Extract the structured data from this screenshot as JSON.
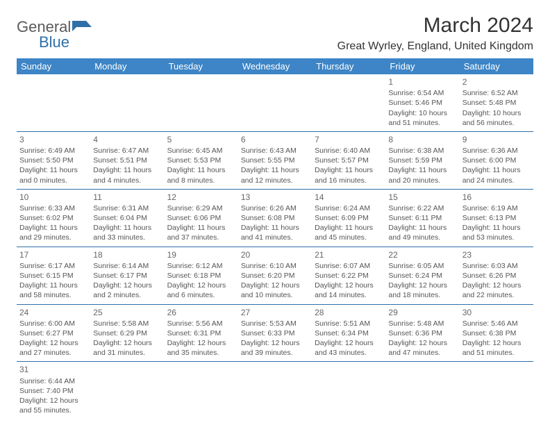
{
  "logo": {
    "general": "General",
    "blue": "Blue"
  },
  "title": "March 2024",
  "location": "Great Wyrley, England, United Kingdom",
  "header_bg": "#3d85c6",
  "days_of_week": [
    "Sunday",
    "Monday",
    "Tuesday",
    "Wednesday",
    "Thursday",
    "Friday",
    "Saturday"
  ],
  "cells": [
    [
      null,
      null,
      null,
      null,
      null,
      {
        "n": "1",
        "sr": "Sunrise: 6:54 AM",
        "ss": "Sunset: 5:46 PM",
        "dl": "Daylight: 10 hours and 51 minutes."
      },
      {
        "n": "2",
        "sr": "Sunrise: 6:52 AM",
        "ss": "Sunset: 5:48 PM",
        "dl": "Daylight: 10 hours and 56 minutes."
      }
    ],
    [
      {
        "n": "3",
        "sr": "Sunrise: 6:49 AM",
        "ss": "Sunset: 5:50 PM",
        "dl": "Daylight: 11 hours and 0 minutes."
      },
      {
        "n": "4",
        "sr": "Sunrise: 6:47 AM",
        "ss": "Sunset: 5:51 PM",
        "dl": "Daylight: 11 hours and 4 minutes."
      },
      {
        "n": "5",
        "sr": "Sunrise: 6:45 AM",
        "ss": "Sunset: 5:53 PM",
        "dl": "Daylight: 11 hours and 8 minutes."
      },
      {
        "n": "6",
        "sr": "Sunrise: 6:43 AM",
        "ss": "Sunset: 5:55 PM",
        "dl": "Daylight: 11 hours and 12 minutes."
      },
      {
        "n": "7",
        "sr": "Sunrise: 6:40 AM",
        "ss": "Sunset: 5:57 PM",
        "dl": "Daylight: 11 hours and 16 minutes."
      },
      {
        "n": "8",
        "sr": "Sunrise: 6:38 AM",
        "ss": "Sunset: 5:59 PM",
        "dl": "Daylight: 11 hours and 20 minutes."
      },
      {
        "n": "9",
        "sr": "Sunrise: 6:36 AM",
        "ss": "Sunset: 6:00 PM",
        "dl": "Daylight: 11 hours and 24 minutes."
      }
    ],
    [
      {
        "n": "10",
        "sr": "Sunrise: 6:33 AM",
        "ss": "Sunset: 6:02 PM",
        "dl": "Daylight: 11 hours and 29 minutes."
      },
      {
        "n": "11",
        "sr": "Sunrise: 6:31 AM",
        "ss": "Sunset: 6:04 PM",
        "dl": "Daylight: 11 hours and 33 minutes."
      },
      {
        "n": "12",
        "sr": "Sunrise: 6:29 AM",
        "ss": "Sunset: 6:06 PM",
        "dl": "Daylight: 11 hours and 37 minutes."
      },
      {
        "n": "13",
        "sr": "Sunrise: 6:26 AM",
        "ss": "Sunset: 6:08 PM",
        "dl": "Daylight: 11 hours and 41 minutes."
      },
      {
        "n": "14",
        "sr": "Sunrise: 6:24 AM",
        "ss": "Sunset: 6:09 PM",
        "dl": "Daylight: 11 hours and 45 minutes."
      },
      {
        "n": "15",
        "sr": "Sunrise: 6:22 AM",
        "ss": "Sunset: 6:11 PM",
        "dl": "Daylight: 11 hours and 49 minutes."
      },
      {
        "n": "16",
        "sr": "Sunrise: 6:19 AM",
        "ss": "Sunset: 6:13 PM",
        "dl": "Daylight: 11 hours and 53 minutes."
      }
    ],
    [
      {
        "n": "17",
        "sr": "Sunrise: 6:17 AM",
        "ss": "Sunset: 6:15 PM",
        "dl": "Daylight: 11 hours and 58 minutes."
      },
      {
        "n": "18",
        "sr": "Sunrise: 6:14 AM",
        "ss": "Sunset: 6:17 PM",
        "dl": "Daylight: 12 hours and 2 minutes."
      },
      {
        "n": "19",
        "sr": "Sunrise: 6:12 AM",
        "ss": "Sunset: 6:18 PM",
        "dl": "Daylight: 12 hours and 6 minutes."
      },
      {
        "n": "20",
        "sr": "Sunrise: 6:10 AM",
        "ss": "Sunset: 6:20 PM",
        "dl": "Daylight: 12 hours and 10 minutes."
      },
      {
        "n": "21",
        "sr": "Sunrise: 6:07 AM",
        "ss": "Sunset: 6:22 PM",
        "dl": "Daylight: 12 hours and 14 minutes."
      },
      {
        "n": "22",
        "sr": "Sunrise: 6:05 AM",
        "ss": "Sunset: 6:24 PM",
        "dl": "Daylight: 12 hours and 18 minutes."
      },
      {
        "n": "23",
        "sr": "Sunrise: 6:03 AM",
        "ss": "Sunset: 6:26 PM",
        "dl": "Daylight: 12 hours and 22 minutes."
      }
    ],
    [
      {
        "n": "24",
        "sr": "Sunrise: 6:00 AM",
        "ss": "Sunset: 6:27 PM",
        "dl": "Daylight: 12 hours and 27 minutes."
      },
      {
        "n": "25",
        "sr": "Sunrise: 5:58 AM",
        "ss": "Sunset: 6:29 PM",
        "dl": "Daylight: 12 hours and 31 minutes."
      },
      {
        "n": "26",
        "sr": "Sunrise: 5:56 AM",
        "ss": "Sunset: 6:31 PM",
        "dl": "Daylight: 12 hours and 35 minutes."
      },
      {
        "n": "27",
        "sr": "Sunrise: 5:53 AM",
        "ss": "Sunset: 6:33 PM",
        "dl": "Daylight: 12 hours and 39 minutes."
      },
      {
        "n": "28",
        "sr": "Sunrise: 5:51 AM",
        "ss": "Sunset: 6:34 PM",
        "dl": "Daylight: 12 hours and 43 minutes."
      },
      {
        "n": "29",
        "sr": "Sunrise: 5:48 AM",
        "ss": "Sunset: 6:36 PM",
        "dl": "Daylight: 12 hours and 47 minutes."
      },
      {
        "n": "30",
        "sr": "Sunrise: 5:46 AM",
        "ss": "Sunset: 6:38 PM",
        "dl": "Daylight: 12 hours and 51 minutes."
      }
    ],
    [
      {
        "n": "31",
        "sr": "Sunrise: 6:44 AM",
        "ss": "Sunset: 7:40 PM",
        "dl": "Daylight: 12 hours and 55 minutes."
      },
      null,
      null,
      null,
      null,
      null,
      null
    ]
  ]
}
